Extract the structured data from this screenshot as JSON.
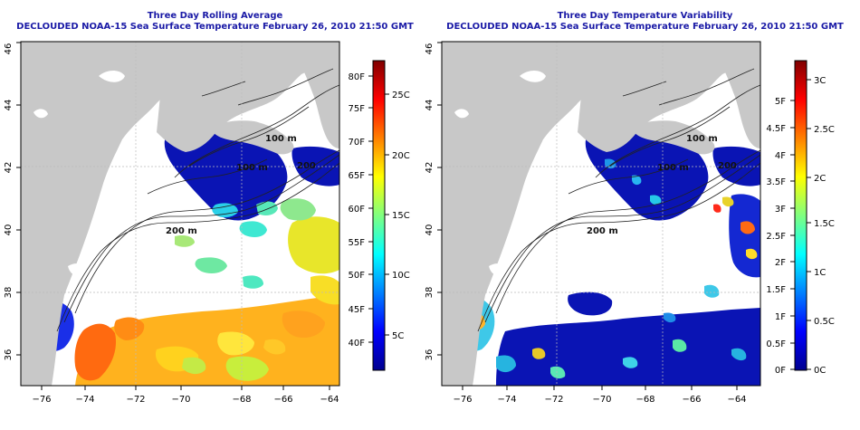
{
  "left_panel": {
    "title_line1": "Three Day Rolling Average",
    "title_line2": "DECLOUDED NOAA-15 Sea Surface Temperature February 26, 2010 21:50 GMT",
    "colorbar": {
      "fahrenheit_labels": [
        "40F",
        "45F",
        "50F",
        "55F",
        "60F",
        "65F",
        "70F",
        "75F",
        "80F"
      ],
      "celsius_labels": [
        "5C",
        "10C",
        "15C",
        "20C",
        "25C"
      ]
    }
  },
  "right_panel": {
    "title_line1": "Three Day Temperature Variability",
    "title_line2": "DECLOUDED NOAA-15 Sea Surface Temperature February 26, 2010 21:50 GMT",
    "colorbar": {
      "fahrenheit_labels": [
        "0F",
        "0.5F",
        "1F",
        "1.5F",
        "2F",
        "2.5F",
        "3F",
        "3.5F",
        "4F",
        "4.5F",
        "5F"
      ],
      "celsius_labels": [
        "0C",
        "0.5C",
        "1C",
        "1.5C",
        "2C",
        "2.5C",
        "3C"
      ]
    }
  },
  "axes": {
    "lon_labels": [
      "−76",
      "−74",
      "−72",
      "−70",
      "−68",
      "−66",
      "−64"
    ],
    "lat_labels": [
      "36",
      "38",
      "40",
      "42",
      "44",
      "46"
    ]
  },
  "contour_labels": [
    "100 m",
    "200 m",
    "200 m",
    "100 m",
    "200"
  ],
  "colors": {
    "title": "#1a1aa6",
    "land": "#c8c8c8",
    "ocean_nodata": "#ffffff",
    "cold": "#0a14b4",
    "jet_low": "#00008f",
    "jet_high": "#800000"
  }
}
